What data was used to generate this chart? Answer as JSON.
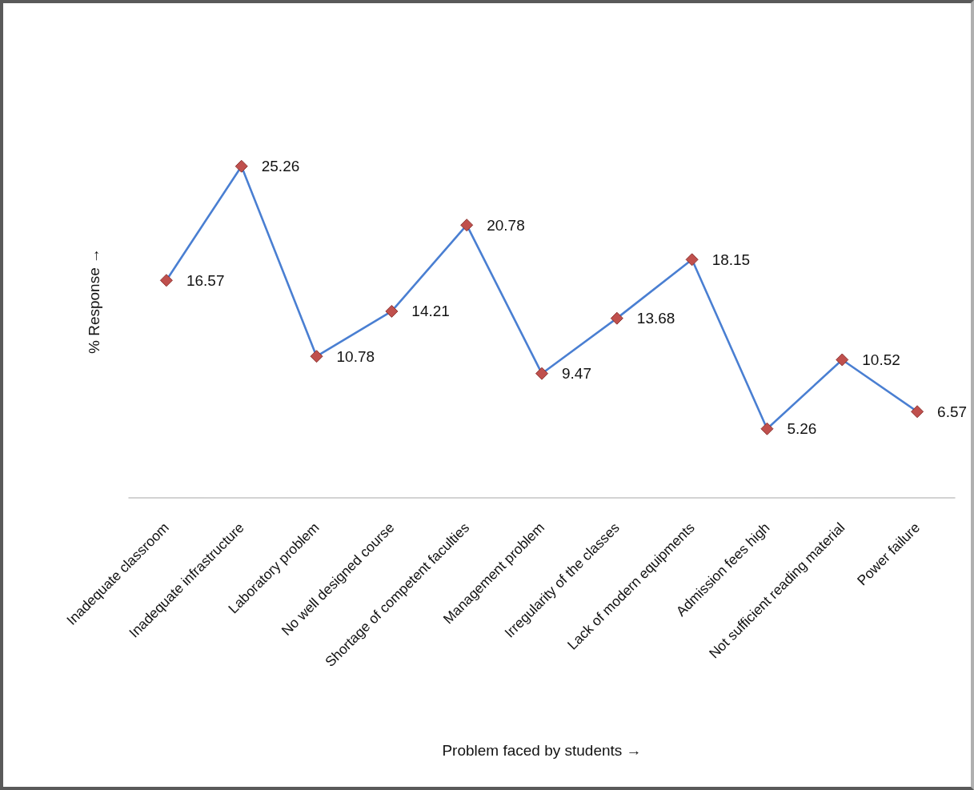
{
  "chart_data": {
    "type": "line",
    "xlabel": "Problem faced by students →",
    "ylabel": "% Response →",
    "categories": [
      "Inadequate classroom",
      "Inadequate infrastructure",
      "Laboratory problem",
      "No well designed course",
      "Shortage of competent faculties",
      "Management problem",
      "Irregularity of the classes",
      "Lack of modern equipments",
      "Admission fees high",
      "Not sufficient reading material",
      "Power failure"
    ],
    "series": [
      {
        "color": "#4a7fd2",
        "colors": [
          "#c0504d",
          "#c0504d",
          "#c0504d",
          "#c0504d",
          "#c0504d",
          "#c0504d",
          "#c0504d",
          "#c0504d",
          "#c0504d",
          "#c0504d",
          "#c0504d"
        ],
        "values": [
          16.57,
          25.26,
          10.78,
          14.21,
          20.78,
          9.47,
          13.68,
          18.15,
          5.26,
          10.52,
          6.57
        ]
      }
    ],
    "marker": "diamond",
    "line_style": "solid",
    "data_labels": true,
    "tick_labels": "x",
    "grid": false
  }
}
